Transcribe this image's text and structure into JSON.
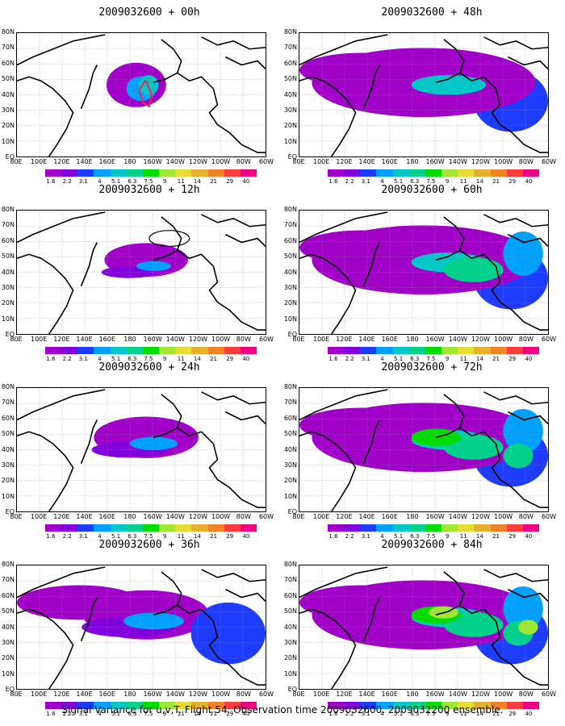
{
  "caption": "Signal Variance for u,v,T. Flight 54. Observation time 2009032600. 2009032200 ensemble.",
  "colorbar": {
    "labels": [
      "1.6",
      "2.2",
      "3.1",
      "4",
      "5.1",
      "6.3",
      "7.5",
      "9",
      "11",
      "14",
      "21",
      "29",
      "40"
    ],
    "colors": [
      "#a000c8",
      "#8200dc",
      "#1e3cff",
      "#00a0ff",
      "#00c8c8",
      "#00d28c",
      "#00dc00",
      "#a0e632",
      "#e6dc32",
      "#e6af2d",
      "#f08228",
      "#fa3c3c",
      "#f00082"
    ]
  },
  "axes": {
    "lat_labels": [
      "80N",
      "70N",
      "60N",
      "50N",
      "40N",
      "30N",
      "20N",
      "10N",
      "EQ"
    ],
    "lon_labels": [
      "80E",
      "100E",
      "120E",
      "140E",
      "160E",
      "180",
      "160W",
      "140W",
      "120W",
      "100W",
      "80W",
      "60W"
    ]
  },
  "chart_data": [
    {
      "type": "heatmap",
      "title": "2009032600 + 00h",
      "forecast_hour": 0
    },
    {
      "type": "heatmap",
      "title": "2009032600 + 12h",
      "forecast_hour": 12
    },
    {
      "type": "heatmap",
      "title": "2009032600 + 24h",
      "forecast_hour": 24
    },
    {
      "type": "heatmap",
      "title": "2009032600 + 36h",
      "forecast_hour": 36
    },
    {
      "type": "heatmap",
      "title": "2009032600 + 48h",
      "forecast_hour": 48
    },
    {
      "type": "heatmap",
      "title": "2009032600 + 60h",
      "forecast_hour": 60
    },
    {
      "type": "heatmap",
      "title": "2009032600 + 72h",
      "forecast_hour": 72
    },
    {
      "type": "heatmap",
      "title": "2009032600 + 84h",
      "forecast_hour": 84
    }
  ]
}
